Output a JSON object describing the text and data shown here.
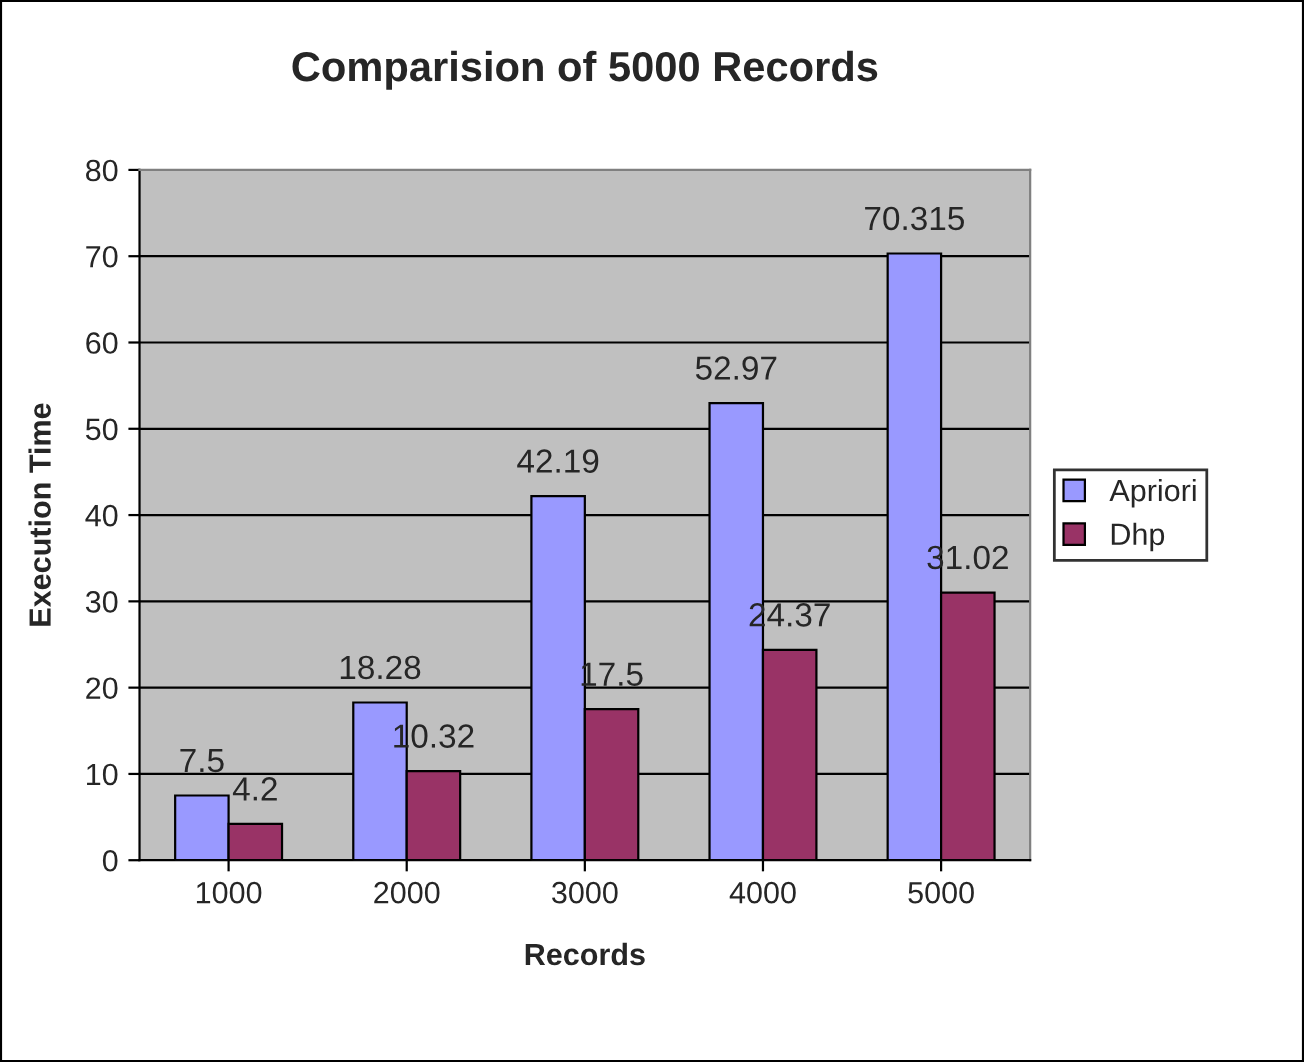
{
  "chart_data": {
    "type": "bar",
    "title": "Comparision of 5000 Records",
    "xlabel": "Records",
    "ylabel": "Execution Time",
    "categories": [
      "1000",
      "2000",
      "3000",
      "4000",
      "5000"
    ],
    "series": [
      {
        "name": "Apriori",
        "color": "#9999ff",
        "values": [
          7.5,
          18.28,
          42.19,
          52.97,
          70.315
        ]
      },
      {
        "name": "Dhp",
        "color": "#993366",
        "values": [
          4.2,
          10.32,
          17.5,
          24.37,
          31.02
        ]
      }
    ],
    "ylim": [
      0,
      80
    ],
    "yticks": [
      0,
      10,
      20,
      30,
      40,
      50,
      60,
      70,
      80
    ],
    "grid": "y",
    "legend": "right",
    "data_labels": true
  }
}
